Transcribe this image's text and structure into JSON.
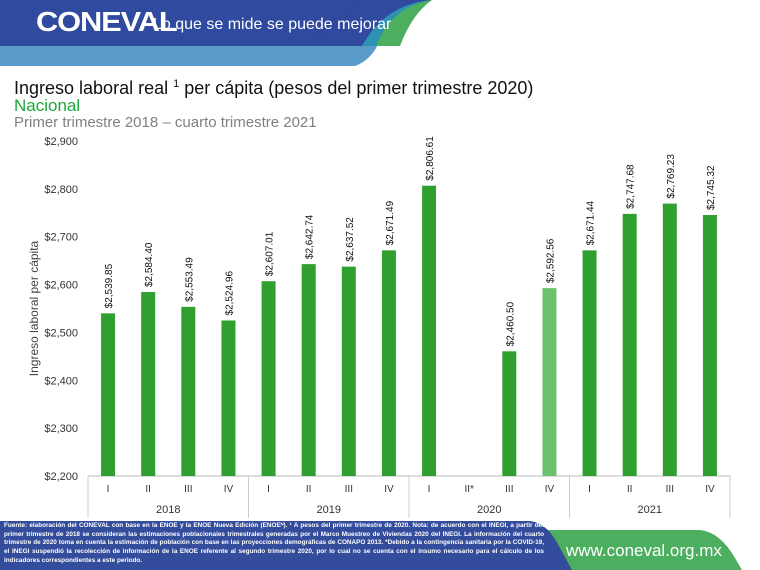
{
  "header": {
    "logo": "CONEVAL",
    "slogan": "Lo que se mide se puede mejorar"
  },
  "title": {
    "main": "Ingreso laboral real",
    "sup": "1",
    "rest": "per cápita (pesos del primer trimestre 2020)",
    "region": "Nacional",
    "period": "Primer trimestre 2018 – cuarto trimestre 2021"
  },
  "colors": {
    "bar": "#2fa02f",
    "bar_highlight": "#6cc16c",
    "header_blue": "#2f4a9e",
    "footer_green": "#4caf5f"
  },
  "chart_data": {
    "type": "bar",
    "ylabel": "Ingreso laboral per cápita",
    "ylim": [
      2200,
      2900
    ],
    "yticks": [
      2200,
      2300,
      2400,
      2500,
      2600,
      2700,
      2800,
      2900
    ],
    "ytick_labels": [
      "$2,200",
      "$2,300",
      "$2,400",
      "$2,500",
      "$2,600",
      "$2,700",
      "$2,800",
      "$2,900"
    ],
    "categories": [
      "I",
      "II",
      "III",
      "IV",
      "I",
      "II",
      "III",
      "IV",
      "I",
      "II*",
      "III",
      "IV",
      "I",
      "II",
      "III",
      "IV"
    ],
    "groups": [
      "2018",
      "2019",
      "2020",
      "2021"
    ],
    "values": [
      2539.85,
      2584.4,
      2553.49,
      2524.96,
      2607.01,
      2642.74,
      2637.52,
      2671.49,
      2806.61,
      null,
      2460.5,
      2592.56,
      2671.44,
      2747.68,
      2769.23,
      2745.32
    ],
    "labels": [
      "$2,539.85",
      "$2,584.40",
      "$2,553.49",
      "$2,524.96",
      "$2,607.01",
      "$2,642.74",
      "$2,637.52",
      "$2,671.49",
      "$2,806.61",
      "",
      "$2,460.50",
      "$2,592.56",
      "$2,671.44",
      "$2,747.68",
      "$2,769.23",
      "$2,745.32"
    ],
    "highlight_index": 11
  },
  "footer": {
    "note": "Fuente: elaboración del CONEVAL con base en la ENOE y la ENOE Nueva Edición (ENOEᴺ). ¹ A pesos del primer trimestre de 2020. Nota: de acuerdo con el INEGI, a partir del primer trimestre de 2018 se consideran las estimaciones poblacionales trimestrales generadas por el Marco Muestreo de Viviendas 2020 del INEGI. La información del cuarto trimestre de 2020 toma en cuenta la estimación de población con base en las proyecciones demográficas de CONAPO 2013. *Debido a la contingencia sanitaria por la COVID-19, el INEGI suspendió la recolección de información de la ENOE referente al segundo trimestre 2020, por lo cual no se cuenta con el insumo necesario para el cálculo de los indicadores correspondientes a este periodo.",
    "url": "www.coneval.org.mx"
  }
}
